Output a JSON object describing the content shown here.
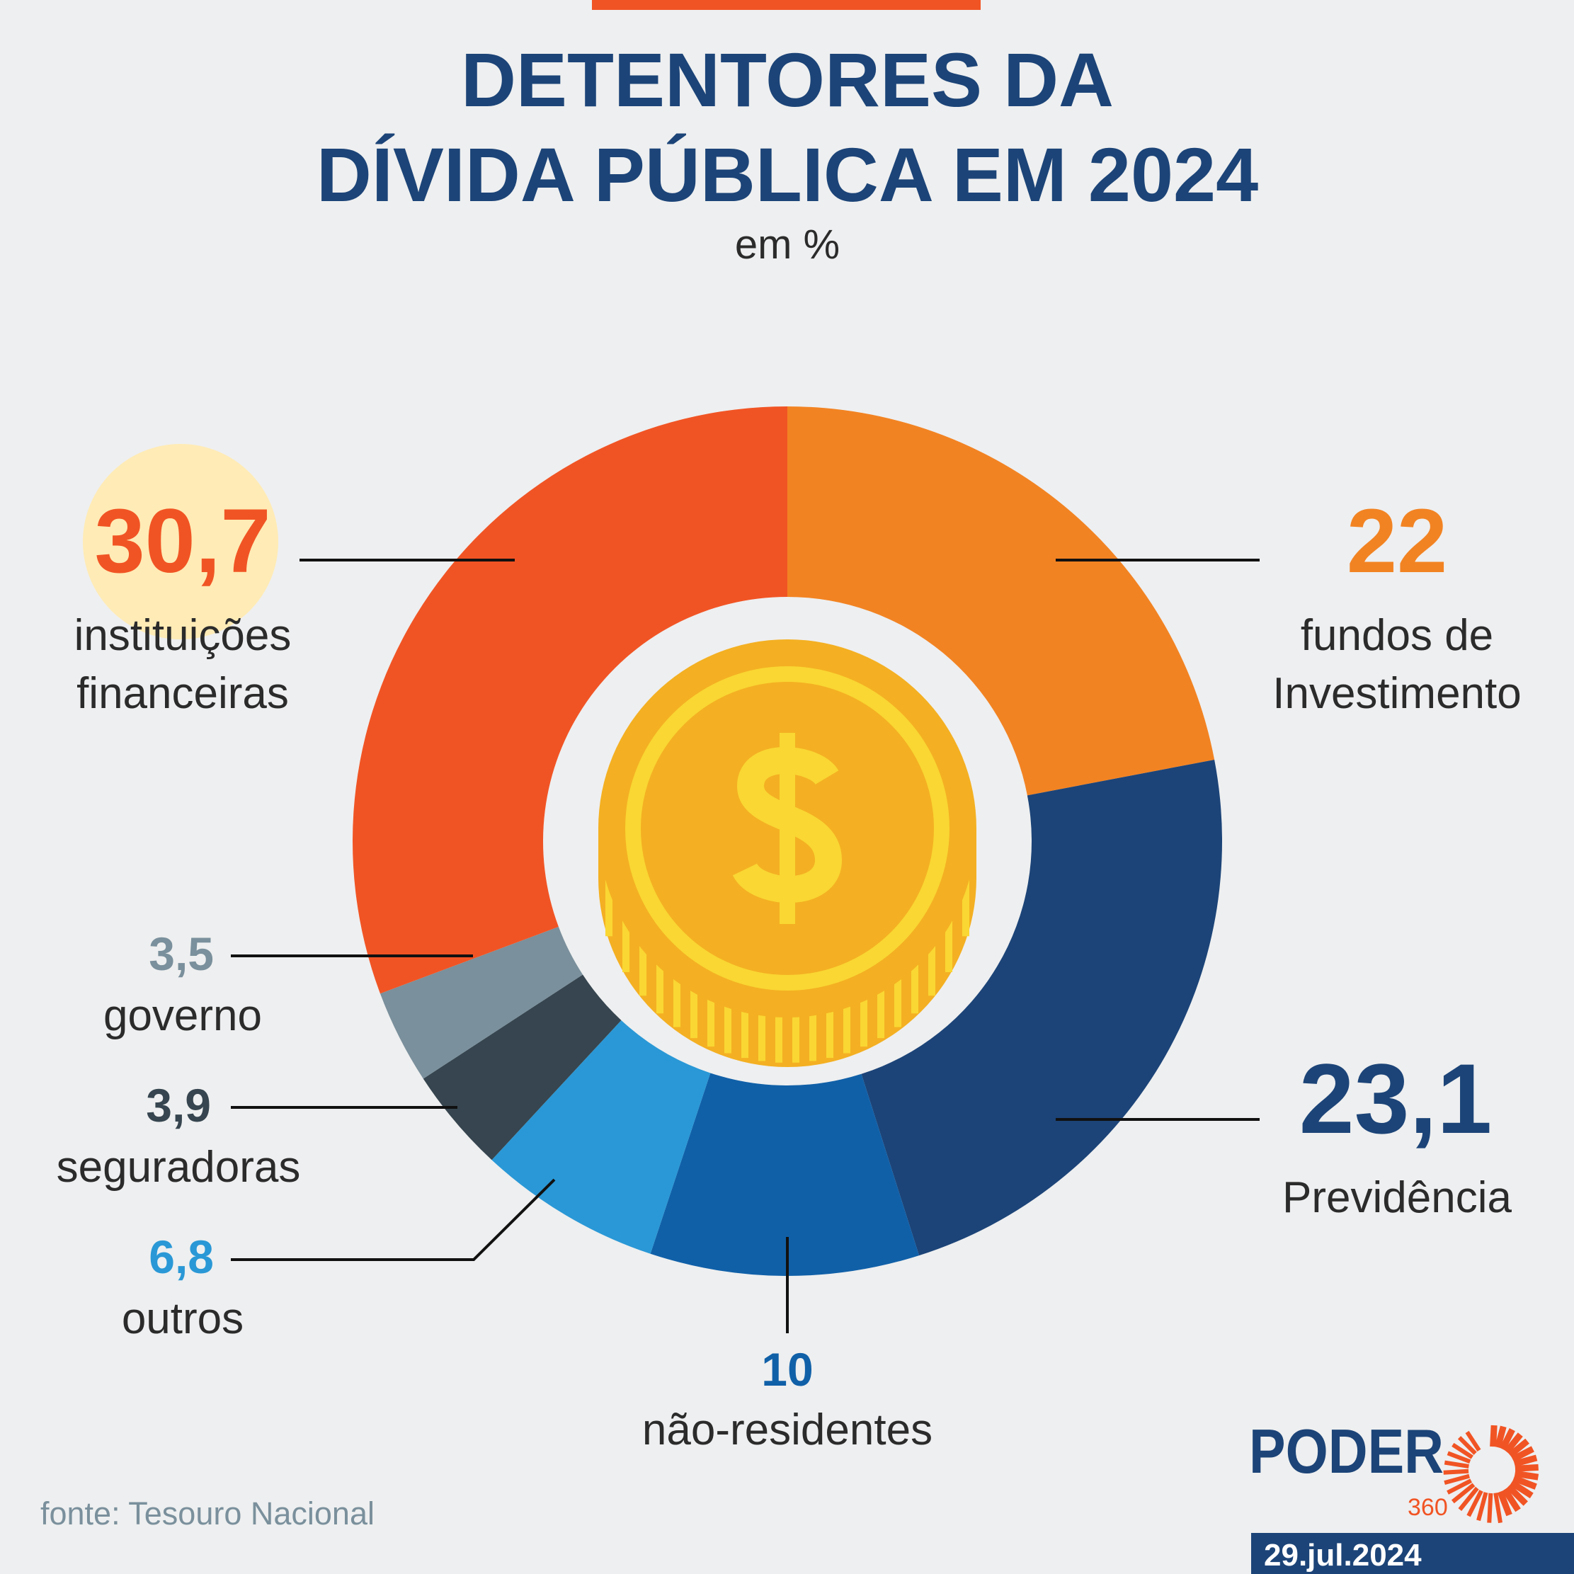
{
  "header": {
    "title_line1": "DETENTORES DA",
    "title_line2": "DÍVIDA PÚBLICA EM 2024",
    "subtitle": "em %"
  },
  "chart_data": {
    "type": "pie",
    "subtype": "donut",
    "title": "DETENTORES DA DÍVIDA PÚBLICA EM 2024",
    "unit": "em %",
    "center_icon": "dollar-coin-icon",
    "slices": [
      {
        "value": "22",
        "v": 22,
        "label1": "fundos de",
        "label2": "Investimento",
        "color": "#F28322",
        "label_color": "#F28322"
      },
      {
        "value": "23,1",
        "v": 23.1,
        "label1": "Previdência",
        "label2": "",
        "color": "#1C4478",
        "label_color": "#1C4478"
      },
      {
        "value": "10",
        "v": 10,
        "label1": "não-residentes",
        "label2": "",
        "color": "#1060A8",
        "label_color": "#1060A8"
      },
      {
        "value": "6,8",
        "v": 6.8,
        "label1": "outros",
        "label2": "",
        "color": "#2A98D6",
        "label_color": "#2A98D6"
      },
      {
        "value": "3,9",
        "v": 3.9,
        "label1": "seguradoras",
        "label2": "",
        "color": "#36454F",
        "label_color": "#36454F"
      },
      {
        "value": "3,5",
        "v": 3.5,
        "label1": "governo",
        "label2": "",
        "color": "#7A909C",
        "label_color": "#7A909C"
      },
      {
        "value": "30,7",
        "v": 30.7,
        "label1": "instituições",
        "label2": "financeiras",
        "color": "#F15424",
        "label_color": "#F15424",
        "highlighted": true
      }
    ]
  },
  "footer": {
    "source": "fonte: Tesouro Nacional",
    "logo_text": "PODER",
    "logo_number": "360",
    "date": "29.jul.2024"
  },
  "colors": {
    "background": "#EEEFF0",
    "accent_bar": "#F15424",
    "title": "#1C4478",
    "highlight": "#FFEBB5",
    "coin": "#F4B022",
    "coin_light": "#FAD733"
  }
}
